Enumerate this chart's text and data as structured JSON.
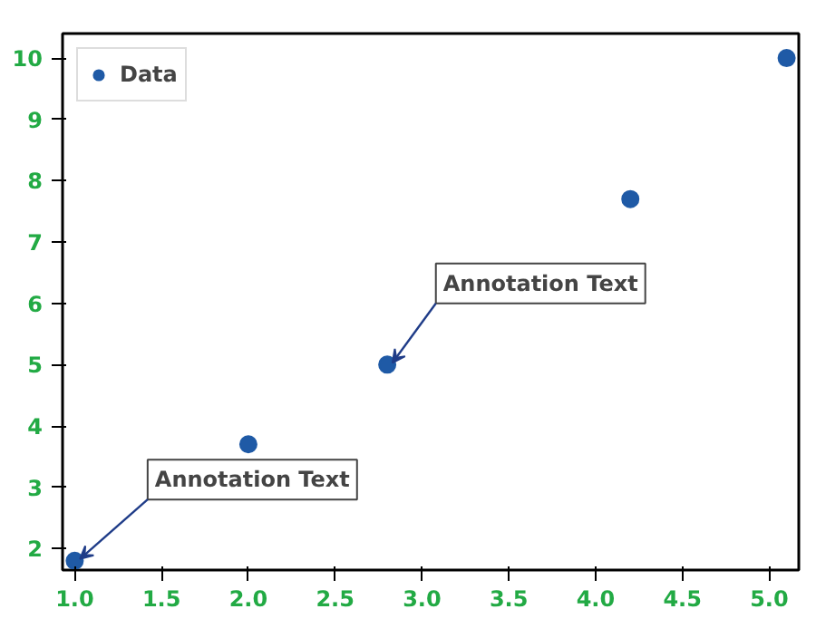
{
  "chart_data": {
    "type": "scatter",
    "x": [
      1.0,
      2.0,
      2.8,
      4.2,
      5.1
    ],
    "series": [
      {
        "name": "Data",
        "color": "#1f5aa6",
        "values": [
          1.8,
          3.7,
          5.0,
          7.7,
          10.0
        ]
      }
    ],
    "xlim": [
      0.93,
      5.17
    ],
    "ylim": [
      1.65,
      10.4
    ],
    "xticks": [
      {
        "value": 1.0,
        "label": "1.0"
      },
      {
        "value": 1.5,
        "label": "1.5"
      },
      {
        "value": 2.0,
        "label": "2.0"
      },
      {
        "value": 2.5,
        "label": "2.5"
      },
      {
        "value": 3.0,
        "label": "3.0"
      },
      {
        "value": 3.5,
        "label": "3.5"
      },
      {
        "value": 4.0,
        "label": "4.0"
      },
      {
        "value": 4.5,
        "label": "4.5"
      },
      {
        "value": 5.0,
        "label": "5.0"
      }
    ],
    "yticks": [
      2,
      3,
      4,
      5,
      6,
      7,
      8,
      9,
      10
    ],
    "annotations": [
      {
        "text": "Annotation Text",
        "x": 1.0,
        "y": 1.8
      },
      {
        "text": "Annotation Text",
        "x": 2.8,
        "y": 5.0
      }
    ],
    "legend": "top left",
    "marker": "circle",
    "grid": false
  }
}
